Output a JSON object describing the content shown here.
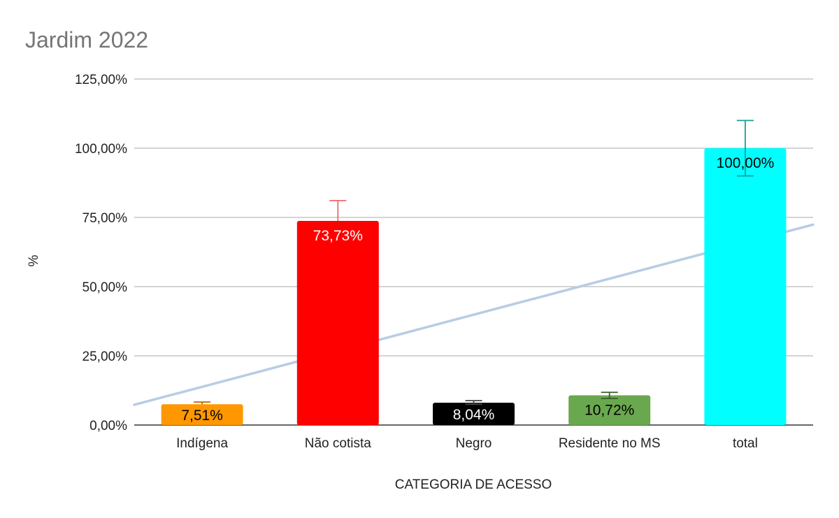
{
  "chart_data": {
    "type": "bar",
    "title": "Jardim 2022",
    "xlabel": "CATEGORIA DE ACESSO",
    "ylabel": "%",
    "ylim": [
      0,
      125
    ],
    "yticks": [
      0,
      25,
      50,
      75,
      100,
      125
    ],
    "ytick_labels": [
      "0,00%",
      "25,00%",
      "50,00%",
      "75,00%",
      "100,00%",
      "125,00%"
    ],
    "grid": true,
    "categories": [
      "Indígena",
      "Não cotista",
      "Negro",
      "Residente no MS",
      "total"
    ],
    "values": [
      7.51,
      73.73,
      8.04,
      10.72,
      100.0
    ],
    "value_labels": [
      "7,51%",
      "73,73%",
      "8,04%",
      "10,72%",
      "100,00%"
    ],
    "error_bars": [
      {
        "low": 7.51,
        "high": 8.3
      },
      {
        "low": 73.73,
        "high": 81.1
      },
      {
        "low": 7.5,
        "high": 8.8
      },
      {
        "low": 9.6,
        "high": 11.8
      },
      {
        "low": 90.0,
        "high": 110.0
      }
    ],
    "colors": [
      "#ff9800",
      "#ff0000",
      "#000000",
      "#6aa84f",
      "#00ffff"
    ],
    "error_bar_colors": [
      "#b06a00",
      "#ef6a6a",
      "#444444",
      "#3b5e2b",
      "#14a099"
    ],
    "label_colors": [
      "#000000",
      "#ffffff",
      "#ffffff",
      "#000000",
      "#000000"
    ],
    "trendline": {
      "type": "linear",
      "color": "#b8cce4",
      "start": 7.3,
      "end": 72.4
    }
  }
}
